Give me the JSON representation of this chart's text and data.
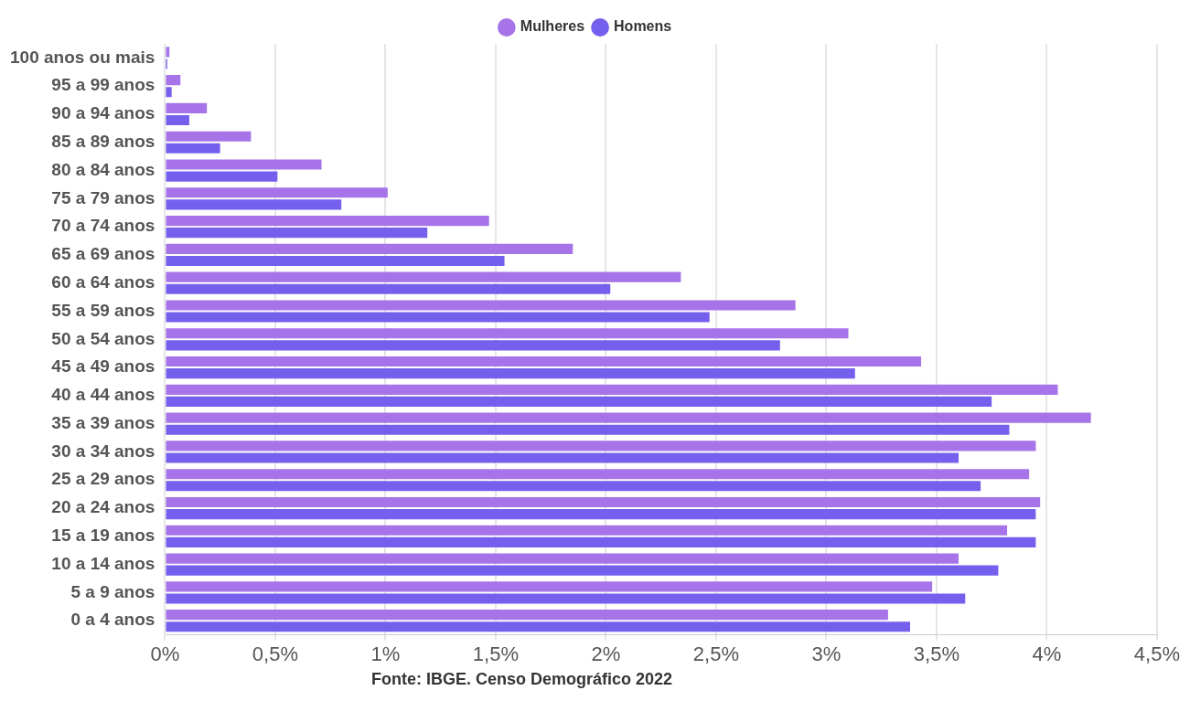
{
  "chart_data": {
    "type": "bar",
    "orientation": "horizontal",
    "categories": [
      "100 anos ou mais",
      "95 a 99 anos",
      "90 a 94 anos",
      "85 a 89 anos",
      "80 a 84 anos",
      "75 a 79 anos",
      "70 a 74 anos",
      "65 a 69 anos",
      "60 a 64 anos",
      "55 a 59 anos",
      "50 a 54 anos",
      "45 a 49 anos",
      "40 a 44 anos",
      "35 a 39 anos",
      "30 a 34 anos",
      "25 a 29 anos",
      "20 a 24 anos",
      "15 a 19 anos",
      "10 a 14 anos",
      "5 a 9 anos",
      "0 a 4 anos"
    ],
    "series": [
      {
        "name": "Mulheres",
        "color": "#a673e8",
        "values": [
          0.02,
          0.07,
          0.19,
          0.39,
          0.71,
          1.01,
          1.47,
          1.85,
          2.34,
          2.86,
          3.1,
          3.43,
          4.05,
          4.2,
          3.95,
          3.92,
          3.97,
          3.82,
          3.6,
          3.48,
          3.28
        ]
      },
      {
        "name": "Homens",
        "color": "#7560ee",
        "values": [
          0.01,
          0.03,
          0.11,
          0.25,
          0.51,
          0.8,
          1.19,
          1.54,
          2.02,
          2.47,
          2.79,
          3.13,
          3.75,
          3.83,
          3.6,
          3.7,
          3.95,
          3.95,
          3.78,
          3.63,
          3.38
        ]
      }
    ],
    "xlim": [
      0,
      4.5
    ],
    "xticks": [
      {
        "value": 0,
        "label": "0%"
      },
      {
        "value": 0.5,
        "label": "0,5%"
      },
      {
        "value": 1,
        "label": "1%"
      },
      {
        "value": 1.5,
        "label": "1,5%"
      },
      {
        "value": 2,
        "label": "2%"
      },
      {
        "value": 2.5,
        "label": "2,5%"
      },
      {
        "value": 3,
        "label": "3%"
      },
      {
        "value": 3.5,
        "label": "3,5%"
      },
      {
        "value": 4,
        "label": "4%"
      },
      {
        "value": 4.5,
        "label": "4,5%"
      }
    ],
    "grid": "x",
    "legend": "top",
    "annotations": [
      "Fonte: IBGE. Censo Demográfico 2022"
    ]
  }
}
